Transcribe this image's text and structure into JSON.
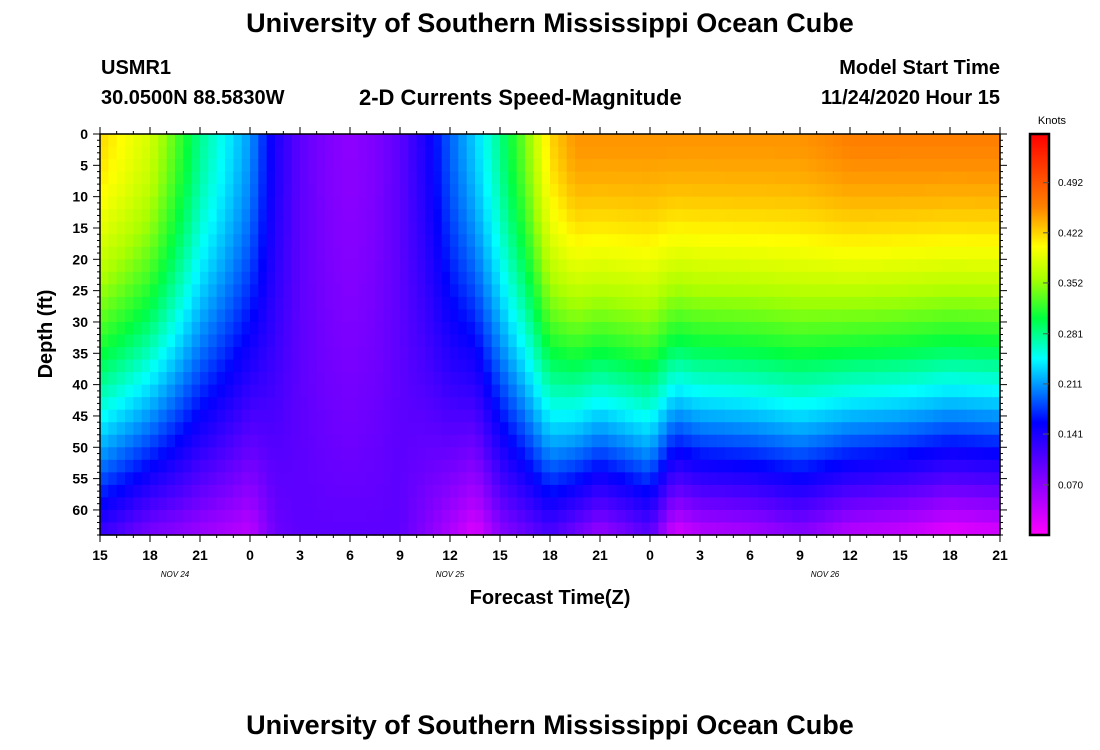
{
  "header": {
    "top_title": "University of Southern Mississippi Ocean Cube",
    "bottom_title": "University of Southern Mississippi Ocean Cube",
    "station": "USMR1",
    "coords": "30.0500N 88.5830W",
    "plot_title": "2-D Currents Speed-Magnitude",
    "model_start_label": "Model Start Time",
    "model_start_value": "11/24/2020 Hour 15"
  },
  "chart_data": {
    "type": "heatmap",
    "title": "2-D Currents Speed-Magnitude",
    "xlabel": "Forecast Time(Z)",
    "ylabel": "Depth (ft)",
    "x_tick_labels": [
      "15",
      "18",
      "21",
      "0",
      "3",
      "6",
      "9",
      "12",
      "15",
      "18",
      "21",
      "0",
      "3",
      "6",
      "9",
      "12",
      "15",
      "18",
      "21"
    ],
    "x_range_hours": [
      0,
      54
    ],
    "date_labels": [
      {
        "text": "NOV  24",
        "hour": 4.5
      },
      {
        "text": "NOV  25",
        "hour": 21
      },
      {
        "text": "NOV  26",
        "hour": 43.5
      }
    ],
    "y_ticks": [
      0,
      5,
      10,
      15,
      20,
      25,
      30,
      35,
      40,
      45,
      50,
      55,
      60
    ],
    "ylim": [
      0,
      64
    ],
    "y_inverted": true,
    "colorbar": {
      "label": "Knots",
      "min": 0.0,
      "max": 0.56,
      "ticks": [
        0.492,
        0.422,
        0.352,
        0.281,
        0.211,
        0.141,
        0.07
      ],
      "colormap": "rainbow (magenta-blue-cyan-green-yellow-orange-red)"
    },
    "surface_profile_knots": {
      "hours": [
        0,
        3,
        6,
        9,
        10.5,
        12,
        13.5,
        15,
        16.5,
        18,
        19.5,
        21,
        22.5,
        24,
        25.5,
        27,
        28.5,
        30,
        31.5,
        33,
        34.5,
        36,
        39,
        42,
        45,
        48,
        51,
        54
      ],
      "values": [
        0.42,
        0.38,
        0.28,
        0.21,
        0.14,
        0.1,
        0.08,
        0.07,
        0.08,
        0.1,
        0.14,
        0.19,
        0.23,
        0.28,
        0.34,
        0.42,
        0.45,
        0.45,
        0.45,
        0.45,
        0.45,
        0.45,
        0.45,
        0.45,
        0.46,
        0.46,
        0.46,
        0.46
      ]
    },
    "bottom_profile_knots": {
      "hours": [
        0,
        3,
        6,
        9,
        10.5,
        12,
        15,
        18,
        21,
        22.5,
        24,
        27,
        30,
        33,
        34.5,
        36,
        39,
        42,
        45,
        48,
        51,
        54
      ],
      "values": [
        0.12,
        0.08,
        0.06,
        0.04,
        0.09,
        0.1,
        0.1,
        0.1,
        0.05,
        0.02,
        0.07,
        0.11,
        0.06,
        0.1,
        0.02,
        0.04,
        0.05,
        0.07,
        0.04,
        0.03,
        0.01,
        0.02
      ]
    }
  },
  "legend": {
    "units_label": "Knots"
  }
}
